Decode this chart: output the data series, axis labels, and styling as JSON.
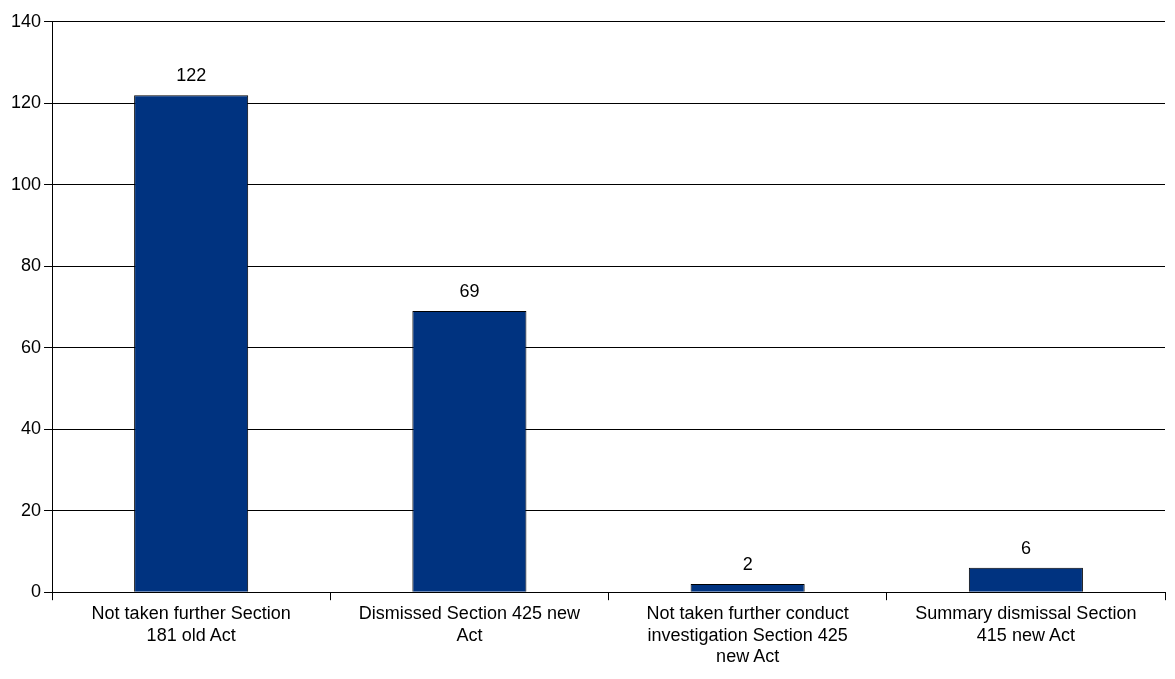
{
  "chart_data": {
    "type": "bar",
    "categories": [
      "Not taken further Section 181 old Act",
      "Dismissed Section 425 new Act",
      "Not taken further conduct investigation Section 425 new Act",
      "Summary dismissal Section 415 new Act"
    ],
    "values": [
      122,
      69,
      2,
      6
    ],
    "color": "#003380",
    "ylim": [
      0,
      140
    ],
    "yticks": [
      0,
      20,
      40,
      60,
      80,
      100,
      120,
      140
    ],
    "grid": "y",
    "data_labels": true,
    "legend": false
  }
}
